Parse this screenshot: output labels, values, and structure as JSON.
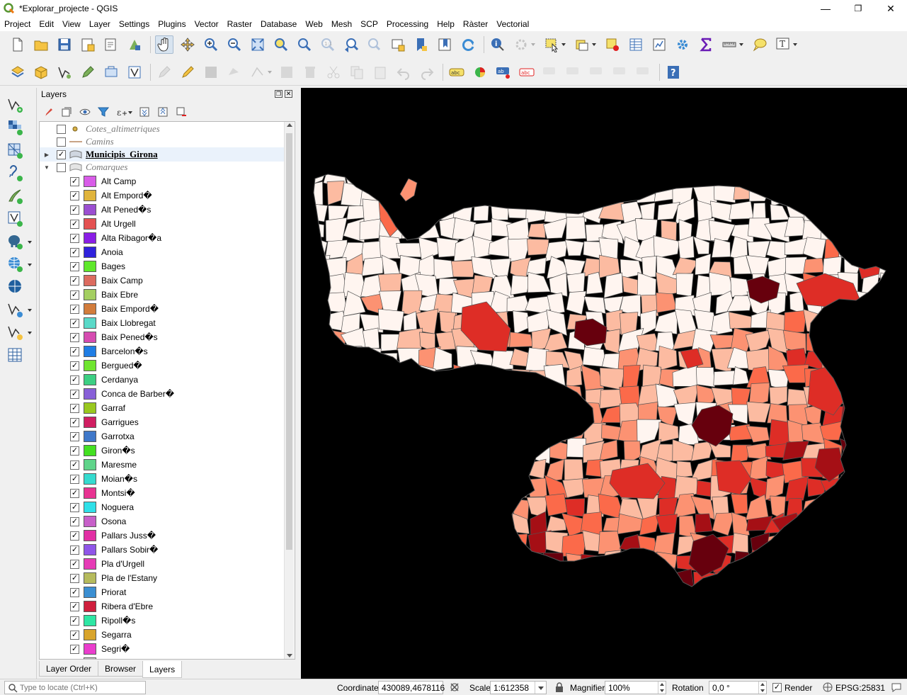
{
  "window": {
    "title": "*Explorar_projecte - QGIS"
  },
  "menu": [
    "Project",
    "Edit",
    "View",
    "Layer",
    "Settings",
    "Plugins",
    "Vector",
    "Raster",
    "Database",
    "Web",
    "Mesh",
    "SCP",
    "Processing",
    "Help",
    "Ràster",
    "Vectorial"
  ],
  "layers_panel": {
    "title": "Layers",
    "tabs": [
      "Layer Order",
      "Browser",
      "Layers"
    ],
    "active_tab": "Layers",
    "layers": [
      {
        "name": "Cotes_altimetriques",
        "checked": false,
        "style": "italic",
        "symbol": "point"
      },
      {
        "name": "Camins",
        "checked": false,
        "style": "italic",
        "symbol": "line"
      },
      {
        "name": "Municipis_Girona",
        "checked": true,
        "style": "bold",
        "symbol": "polygon",
        "expanded": false
      },
      {
        "name": "Comarques",
        "checked": false,
        "style": "italic",
        "symbol": "polygon",
        "expanded": true
      }
    ],
    "classes": [
      {
        "label": "Alt Camp",
        "color": "#d85ce8"
      },
      {
        "label": "Alt Empord�",
        "color": "#e0b43c"
      },
      {
        "label": "Alt Pened�s",
        "color": "#9b4fd1"
      },
      {
        "label": "Alt Urgell",
        "color": "#e45252"
      },
      {
        "label": "Alta Ribagor�a",
        "color": "#8a1ee6"
      },
      {
        "label": "Anoia",
        "color": "#2f22dc"
      },
      {
        "label": "Bages",
        "color": "#5fe82b"
      },
      {
        "label": "Baix Camp",
        "color": "#dc6b60"
      },
      {
        "label": "Baix Ebre",
        "color": "#a4cf62"
      },
      {
        "label": "Baix Empord�",
        "color": "#d27c3c"
      },
      {
        "label": "Baix Llobregat",
        "color": "#5ad9c8"
      },
      {
        "label": "Baix Pened�s",
        "color": "#d64cb1"
      },
      {
        "label": "Barcelon�s",
        "color": "#1f7de4"
      },
      {
        "label": "Bergued�",
        "color": "#6fe52f"
      },
      {
        "label": "Cerdanya",
        "color": "#3ccf83"
      },
      {
        "label": "Conca de Barber�",
        "color": "#8860d8"
      },
      {
        "label": "Garraf",
        "color": "#99c81f"
      },
      {
        "label": "Garrigues",
        "color": "#d01e62"
      },
      {
        "label": "Garrotxa",
        "color": "#3f78c9"
      },
      {
        "label": "Giron�s",
        "color": "#44e021"
      },
      {
        "label": "Maresme",
        "color": "#5fd48a"
      },
      {
        "label": "Moian�s",
        "color": "#35dbcf"
      },
      {
        "label": "Montsi�",
        "color": "#e83392"
      },
      {
        "label": "Noguera",
        "color": "#2fe0e8"
      },
      {
        "label": "Osona",
        "color": "#c760c9"
      },
      {
        "label": "Pallars Juss�",
        "color": "#e22fa4"
      },
      {
        "label": "Pallars Sobir�",
        "color": "#8f56e8"
      },
      {
        "label": "Pla d'Urgell",
        "color": "#e63cb6"
      },
      {
        "label": "Pla de l'Estany",
        "color": "#b6bb5d"
      },
      {
        "label": "Priorat",
        "color": "#3b8fd2"
      },
      {
        "label": "Ribera d'Ebre",
        "color": "#cf1f3d"
      },
      {
        "label": "Ripoll�s",
        "color": "#2ee6a4"
      },
      {
        "label": "Segarra",
        "color": "#d8a42c"
      },
      {
        "label": "Segri�",
        "color": "#ea3dcd"
      },
      {
        "label": "",
        "color": "#cccccc"
      }
    ]
  },
  "map": {
    "background": "#000000",
    "palette": [
      "#fff5f0",
      "#fcbba1",
      "#fc9272",
      "#fb6a4a",
      "#de2d26",
      "#a50f15",
      "#67000d"
    ],
    "outline": "#555555"
  },
  "statusbar": {
    "locator_placeholder": "Type to locate (Ctrl+K)",
    "coordinate_label": "Coordinate",
    "coordinate_value": "430089,4678116",
    "scale_label": "Scale",
    "scale_value": "1:612358",
    "magnifier_label": "Magnifier",
    "magnifier_value": "100%",
    "rotation_label": "Rotation",
    "rotation_value": "0,0 °",
    "render_label": "Render",
    "render_checked": true,
    "crs": "EPSG:25831"
  }
}
